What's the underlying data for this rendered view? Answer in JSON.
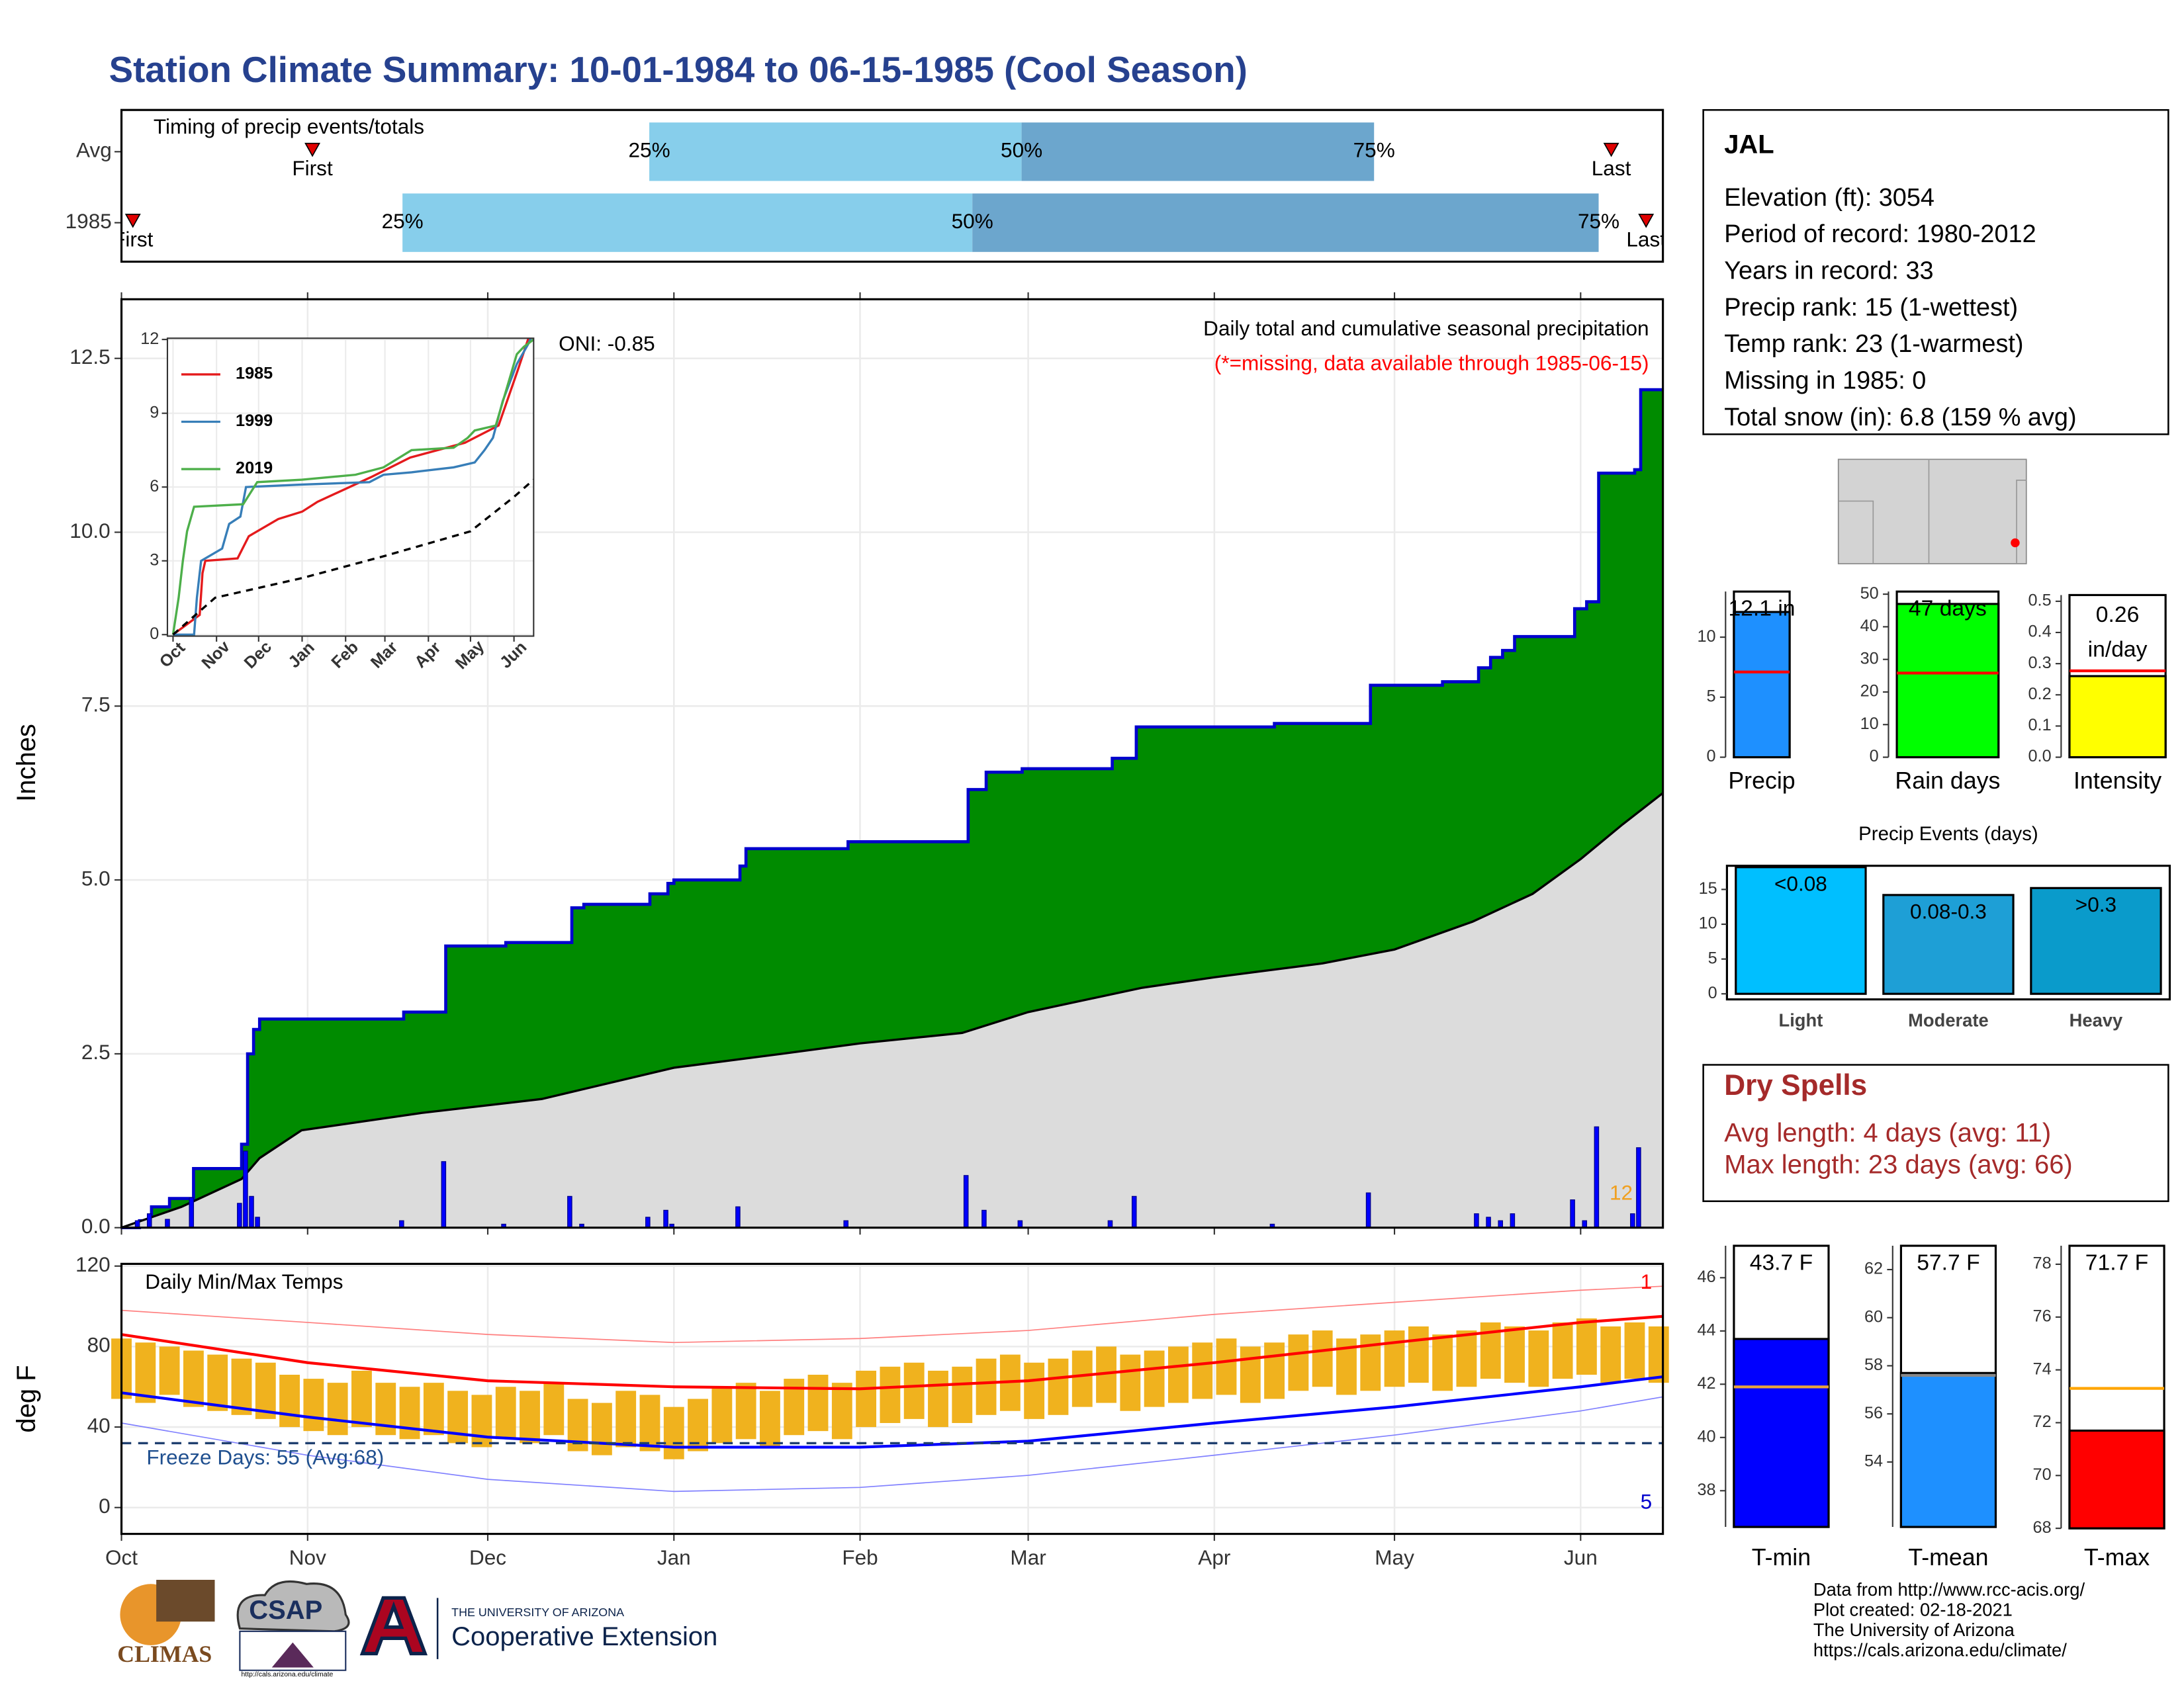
{
  "title": "Station Climate Summary: 10-01-1984 to 06-15-1985 (Cool Season)",
  "station": {
    "name": "JAL",
    "lines": [
      "Elevation (ft): 3054",
      "Period of record: 1980-2012",
      "Years in record: 33",
      "Precip rank: 15 (1-wettest)",
      "Temp rank: 23 (1-warmest)",
      "Missing in 1985: 0",
      "Total snow (in): 6.8 (159 % avg)"
    ]
  },
  "dry_spells": {
    "title": "Dry Spells",
    "lines": [
      "Avg length: 4 days (avg: 11)",
      "Max length: 23 days (avg: 66)"
    ]
  },
  "footer": {
    "credits": [
      "Data from http://www.rcc-acis.org/",
      "Plot created: 02-18-2021",
      "The University of Arizona",
      "https://cals.arizona.edu/climate/"
    ],
    "climas": "CLIMAS",
    "csap": "CSAP",
    "csap_url": "http://cals.arizona.edu/climate",
    "university": "THE UNIVERSITY OF ARIZONA",
    "extension": "Cooperative Extension"
  },
  "chart_data": [
    {
      "type": "timing",
      "title": "Timing of precip events/totals",
      "xlim": [
        0,
        256.7
      ],
      "rows": [
        {
          "name": "Avg",
          "first": 31.8,
          "q25": 87.9,
          "q50": 149.9,
          "q75": 208.6,
          "last": 248.1
        },
        {
          "name": "1985",
          "first": 1.9,
          "q25": 46.8,
          "q50": 141.7,
          "q75": 246.0,
          "last": 253.9
        }
      ],
      "first_label": "First",
      "last_label": "Last",
      "quantile_labels": [
        "25%",
        "50%",
        "75%"
      ],
      "colors": [
        "#87ceeb",
        "#6ca6cd"
      ]
    },
    {
      "type": "area",
      "ylabel": "Inches",
      "oni": "ONI: -0.85",
      "subtitle": "Daily total and cumulative seasonal precipitation",
      "note": "(*=missing, data available through 1985-06-15)",
      "snow_note": "12",
      "xlim": [
        0,
        256.7
      ],
      "ylim": [
        0,
        13.35
      ],
      "grid": true,
      "xticks": [
        {
          "value": 0,
          "label": "Oct"
        },
        {
          "value": 31,
          "label": "Nov"
        },
        {
          "value": 61,
          "label": "Dec"
        },
        {
          "value": 92,
          "label": "Jan"
        },
        {
          "value": 123,
          "label": "Feb"
        },
        {
          "value": 151,
          "label": "Mar"
        },
        {
          "value": 182,
          "label": "Apr"
        },
        {
          "value": 212,
          "label": "May"
        },
        {
          "value": 243,
          "label": "Jun"
        }
      ],
      "yticks": [
        {
          "value": 0,
          "label": "0.0"
        },
        2.5,
        {
          "value": 5,
          "label": "5.0"
        },
        7.5,
        {
          "value": 10,
          "label": "10.0"
        },
        12.5
      ],
      "series": [
        {
          "color": "#008b00",
          "line": "#0000cd",
          "x": [
            0,
            3,
            3,
            5,
            5,
            8,
            8,
            12,
            12,
            20,
            20,
            21,
            21,
            22,
            22,
            23,
            23,
            47,
            47,
            54,
            54,
            64,
            64,
            75,
            75,
            77,
            77,
            88,
            88,
            91,
            91,
            92,
            92,
            103,
            103,
            104,
            104,
            121,
            121,
            141,
            141,
            144,
            144,
            150,
            150,
            165,
            165,
            169,
            169,
            192,
            192,
            208,
            208,
            220,
            220,
            226,
            226,
            228,
            228,
            230,
            230,
            232,
            232,
            242,
            242,
            244,
            244,
            246,
            246,
            252,
            252,
            253,
            253,
            256.7
          ],
          "values": [
            0,
            0,
            0.1,
            0.1,
            0.3,
            0.3,
            0.42,
            0.42,
            0.85,
            0.85,
            1.2,
            1.2,
            2.5,
            2.5,
            2.85,
            2.85,
            3.0,
            3.0,
            3.1,
            3.1,
            4.05,
            4.05,
            4.1,
            4.1,
            4.6,
            4.6,
            4.65,
            4.65,
            4.8,
            4.8,
            4.95,
            4.95,
            5.0,
            5.0,
            5.2,
            5.2,
            5.45,
            5.45,
            5.55,
            5.55,
            6.3,
            6.3,
            6.55,
            6.55,
            6.6,
            6.6,
            6.75,
            6.75,
            7.2,
            7.2,
            7.25,
            7.25,
            7.8,
            7.8,
            7.85,
            7.85,
            8.05,
            8.05,
            8.2,
            8.2,
            8.3,
            8.3,
            8.5,
            8.5,
            8.9,
            8.9,
            9.0,
            9.0,
            10.85,
            10.85,
            10.9,
            10.9,
            12.05,
            12.05
          ]
        },
        {
          "color": "#dcdcdc",
          "line": "#000000",
          "x": [
            0,
            10,
            20,
            23,
            30,
            50,
            70,
            92,
            110,
            123,
            140,
            151,
            170,
            182,
            200,
            212,
            225,
            235,
            243,
            250,
            256.7
          ],
          "values": [
            0,
            0.3,
            0.7,
            1.0,
            1.4,
            1.65,
            1.85,
            2.3,
            2.5,
            2.65,
            2.8,
            3.1,
            3.45,
            3.6,
            3.8,
            4.0,
            4.4,
            4.8,
            5.3,
            5.8,
            6.25
          ]
        },
        {
          "color": "#0000ff",
          "line": "#00008b",
          "x": [
            3,
            5,
            8,
            12,
            20,
            21,
            22,
            23,
            47,
            54,
            64,
            75,
            77,
            88,
            91,
            92,
            103,
            121,
            141,
            144,
            150,
            165,
            169,
            192,
            208,
            226,
            228,
            230,
            232,
            242,
            244,
            246,
            252,
            253
          ],
          "values": [
            0.1,
            0.2,
            0.12,
            0.43,
            0.35,
            1.1,
            0.45,
            0.15,
            0.1,
            0.95,
            0.05,
            0.45,
            0.05,
            0.15,
            0.25,
            0.05,
            0.3,
            0.1,
            0.75,
            0.25,
            0.1,
            0.1,
            0.45,
            0.05,
            0.5,
            0.2,
            0.15,
            0.1,
            0.2,
            0.4,
            0.1,
            1.45,
            0.2,
            1.15
          ]
        }
      ]
    },
    {
      "type": "line",
      "xlim": [
        -4,
        257
      ],
      "ylim": [
        -0.06,
        12.05
      ],
      "grid": true,
      "xticks": [
        {
          "value": 0,
          "label": "Oct"
        },
        {
          "value": 31,
          "label": "Nov"
        },
        {
          "value": 61,
          "label": "Dec"
        },
        {
          "value": 92,
          "label": "Jan"
        },
        {
          "value": 123,
          "label": "Feb"
        },
        {
          "value": 151,
          "label": "Mar"
        },
        {
          "value": 182,
          "label": "Apr"
        },
        {
          "value": 212,
          "label": "May"
        },
        {
          "value": 243,
          "label": "Jun"
        }
      ],
      "yticks": [
        0,
        3,
        6,
        9,
        12
      ],
      "series": [
        {
          "name": "1985",
          "color": "#e41a1c",
          "x": [
            0,
            19,
            21,
            23,
            46,
            54,
            75,
            92,
            103,
            141,
            169,
            208,
            232,
            246,
            253,
            257
          ],
          "values": [
            0,
            0.8,
            2.5,
            3.0,
            3.1,
            4.0,
            4.7,
            5.0,
            5.4,
            6.4,
            7.2,
            7.8,
            8.5,
            10.8,
            12,
            12.1
          ]
        },
        {
          "name": "1999",
          "color": "#377eb8",
          "x": [
            0,
            15,
            17,
            20,
            35,
            40,
            48,
            52,
            92,
            140,
            150,
            170,
            200,
            215,
            222,
            228,
            235,
            245,
            253,
            257
          ],
          "values": [
            0,
            0,
            1.5,
            3.0,
            3.5,
            4.5,
            4.8,
            6.0,
            6.1,
            6.2,
            6.5,
            6.6,
            6.8,
            7.0,
            7.5,
            8.0,
            9.5,
            11.0,
            11.8,
            12.3
          ]
        },
        {
          "name": "2019",
          "color": "#4daf4a",
          "x": [
            0,
            4,
            7,
            10,
            15,
            50,
            60,
            92,
            130,
            150,
            170,
            200,
            210,
            215,
            230,
            245,
            250,
            257
          ],
          "values": [
            0,
            1.5,
            3.0,
            4.2,
            5.2,
            5.3,
            6.2,
            6.3,
            6.5,
            6.8,
            7.5,
            7.6,
            8.0,
            8.3,
            8.5,
            11.4,
            11.7,
            12.0
          ]
        },
        {
          "color": "#000000",
          "dashed": true,
          "x": [
            0,
            30,
            92,
            151,
            212,
            243,
            257
          ],
          "values": [
            0,
            1.5,
            2.3,
            3.2,
            4.2,
            5.6,
            6.3
          ]
        }
      ]
    },
    {
      "type": "bar",
      "categories": [
        "Precip"
      ],
      "values": [
        12.1
      ],
      "value_labels": [
        "12.1 in"
      ],
      "average": 7.1,
      "color": "#1e90ff",
      "avg_color": "#ff0000",
      "ylim": [
        0,
        13.8
      ],
      "yticks": [
        0,
        5,
        10
      ]
    },
    {
      "type": "bar",
      "categories": [
        "Rain days"
      ],
      "values": [
        47
      ],
      "value_labels": [
        "47 days"
      ],
      "average": 25.8,
      "color": "#00ff00",
      "avg_color": "#ff0000",
      "ylim": [
        0,
        50.8
      ],
      "yticks": [
        0,
        10,
        20,
        30,
        40,
        50
      ]
    },
    {
      "type": "bar",
      "categories": [
        "Intensity"
      ],
      "values": [
        0.26
      ],
      "value_labels": [
        [
          "0.26",
          "in/day"
        ]
      ],
      "average": 0.277,
      "color": "#ffff00",
      "avg_color": "#ff0000",
      "ylim": [
        0,
        0.52
      ],
      "yticks": [
        {
          "value": 0,
          "label": "0.0"
        },
        0.1,
        0.2,
        0.3,
        0.4,
        0.5
      ]
    },
    {
      "type": "bar",
      "title": "Precip Events (days)",
      "categories": [
        "Light",
        "Moderate",
        "Heavy"
      ],
      "ranges": [
        "<0.08",
        "0.08-0.3",
        ">0.3"
      ],
      "values": [
        18.2,
        14.2,
        15.2
      ],
      "colors": [
        "#00bfff",
        "#1e9fd6",
        "#0a9bcb"
      ],
      "ylim": [
        -0.8,
        18.4
      ],
      "yticks": [
        0,
        5,
        10,
        15
      ]
    },
    {
      "type": "range",
      "title": "Daily Min/Max Temps",
      "ylabel": "deg F",
      "freeze": 32,
      "freeze_label": "Freeze Days: 55 (Avg:68)",
      "high_note": "1",
      "low_note": "5",
      "xlim": [
        0,
        256.7
      ],
      "ylim": [
        -13.1,
        121.1
      ],
      "grid": true,
      "color": "#f0b21e",
      "xticks": [
        {
          "value": 0,
          "label": "Oct"
        },
        {
          "value": 31,
          "label": "Nov"
        },
        {
          "value": 61,
          "label": "Dec"
        },
        {
          "value": 92,
          "label": "Jan"
        },
        {
          "value": 123,
          "label": "Feb"
        },
        {
          "value": 151,
          "label": "Mar"
        },
        {
          "value": 182,
          "label": "Apr"
        },
        {
          "value": 212,
          "label": "May"
        },
        {
          "value": 243,
          "label": "Jun"
        }
      ],
      "yticks": [
        0,
        40,
        80,
        120
      ],
      "x": [
        0,
        4,
        8,
        12,
        16,
        20,
        24,
        28,
        32,
        36,
        40,
        44,
        48,
        52,
        56,
        60,
        64,
        68,
        72,
        76,
        80,
        84,
        88,
        92,
        96,
        100,
        104,
        108,
        112,
        116,
        120,
        124,
        128,
        132,
        136,
        140,
        144,
        148,
        152,
        156,
        160,
        164,
        168,
        172,
        176,
        180,
        184,
        188,
        192,
        196,
        200,
        204,
        208,
        212,
        216,
        220,
        224,
        228,
        232,
        236,
        240,
        244,
        248,
        252,
        256
      ],
      "max": [
        84,
        82,
        80,
        78,
        76,
        74,
        72,
        66,
        64,
        62,
        68,
        62,
        60,
        62,
        58,
        56,
        60,
        58,
        62,
        54,
        52,
        58,
        56,
        50,
        54,
        60,
        62,
        58,
        64,
        66,
        62,
        68,
        70,
        72,
        68,
        70,
        74,
        76,
        72,
        74,
        78,
        80,
        76,
        78,
        80,
        82,
        84,
        80,
        82,
        86,
        88,
        84,
        86,
        88,
        90,
        86,
        88,
        92,
        90,
        88,
        92,
        94,
        90,
        92,
        90
      ],
      "min": [
        54,
        52,
        56,
        50,
        48,
        46,
        44,
        40,
        38,
        36,
        40,
        36,
        34,
        36,
        32,
        30,
        34,
        32,
        36,
        28,
        26,
        30,
        28,
        24,
        28,
        32,
        34,
        30,
        36,
        38,
        34,
        40,
        42,
        44,
        40,
        42,
        46,
        48,
        44,
        46,
        50,
        52,
        48,
        50,
        52,
        54,
        56,
        52,
        54,
        58,
        60,
        56,
        58,
        60,
        62,
        58,
        60,
        64,
        62,
        60,
        64,
        66,
        62,
        64,
        62
      ],
      "series": [
        {
          "color": "#ff7f7f",
          "width": 0.8,
          "x": [
            0,
            31,
            61,
            92,
            123,
            151,
            182,
            212,
            243,
            256.7
          ],
          "values": [
            98,
            92,
            86,
            82,
            84,
            88,
            96,
            102,
            108,
            110
          ]
        },
        {
          "color": "#8080ff",
          "width": 0.8,
          "x": [
            0,
            31,
            61,
            92,
            123,
            151,
            182,
            212,
            243,
            256.7
          ],
          "values": [
            42,
            26,
            14,
            8,
            10,
            16,
            26,
            36,
            48,
            55
          ]
        },
        {
          "color": "#ff0000",
          "width": 2,
          "x": [
            0,
            31,
            61,
            92,
            123,
            151,
            182,
            212,
            243,
            256.7
          ],
          "values": [
            86,
            72,
            63,
            60,
            59,
            63,
            72,
            82,
            92,
            95
          ]
        },
        {
          "color": "#0000ff",
          "width": 2,
          "x": [
            0,
            31,
            61,
            92,
            123,
            151,
            182,
            212,
            243,
            256.7
          ],
          "values": [
            57,
            45,
            35,
            30,
            30,
            33,
            42,
            50,
            60,
            65
          ]
        }
      ]
    },
    {
      "type": "bar",
      "categories": [
        "T-min"
      ],
      "values": [
        43.7
      ],
      "value_labels": [
        "43.7 F"
      ],
      "average": 41.9,
      "color": "#0000ff",
      "avg_color": "#e8a33d",
      "ylim": [
        36.64,
        47.2
      ],
      "yticks": [
        38,
        40,
        42,
        44,
        46
      ]
    },
    {
      "type": "bar",
      "categories": [
        "T-mean"
      ],
      "values": [
        57.7
      ],
      "value_labels": [
        "57.7 F"
      ],
      "average": 57.6,
      "color": "#1e90ff",
      "avg_color": "#888888",
      "ylim": [
        51.3,
        62.99
      ],
      "yticks": [
        54,
        56,
        58,
        60,
        62
      ]
    },
    {
      "type": "bar",
      "categories": [
        "T-max"
      ],
      "values": [
        71.7
      ],
      "value_labels": [
        "71.7 F"
      ],
      "average": 73.3,
      "color": "#ff0000",
      "avg_color": "#ffa500",
      "ylim": [
        68,
        78.7
      ],
      "yticks": [
        68,
        70,
        72,
        74,
        76,
        78
      ]
    }
  ]
}
